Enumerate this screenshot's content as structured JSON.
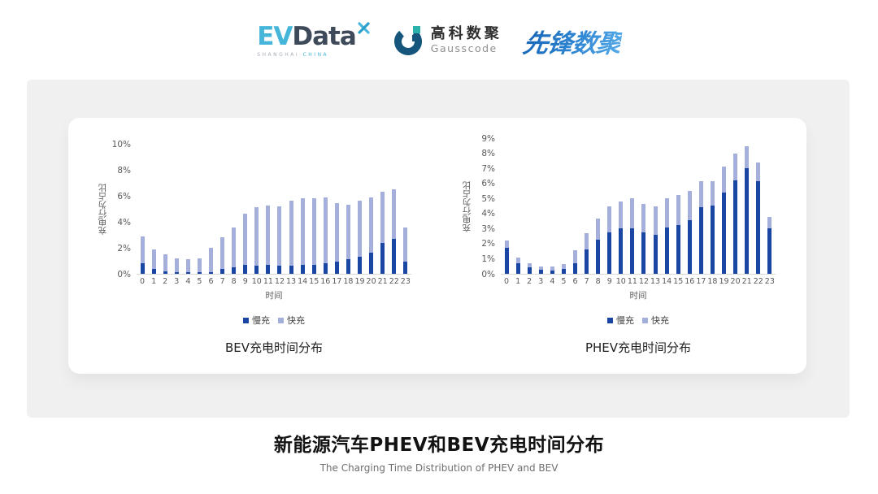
{
  "header": {
    "evdata": {
      "ev": "EV",
      "data": "Data",
      "sub_left": "SHANGHAI",
      "sub_right": "CHINA"
    },
    "gausscode": {
      "cn": "高科数聚",
      "en": "Gausscode"
    },
    "xianfeng": {
      "text": "先锋数聚"
    }
  },
  "footer": {
    "title": "新能源汽车PHEV和BEV充电时间分布",
    "subtitle": "The Charging Time Distribution of PHEV and BEV"
  },
  "colors": {
    "slow": "#1a46a3",
    "fast": "#a5afdc",
    "axis_text": "#595959",
    "panel_bg": "#f0f0f0"
  },
  "chart_data": [
    {
      "type": "bar",
      "stacked": true,
      "title": "BEV充电时间分布",
      "xlabel": "时间",
      "ylabel": "充电行为占比",
      "ylim": [
        0,
        10
      ],
      "y_ticks": [
        "0%",
        "2%",
        "4%",
        "6%",
        "8%",
        "10%"
      ],
      "y_tick_values": [
        0,
        2,
        4,
        6,
        8,
        10
      ],
      "legend": [
        "慢充",
        "快充"
      ],
      "grid": false,
      "legend_position": "bottom",
      "x": [
        0,
        1,
        2,
        3,
        4,
        5,
        6,
        7,
        8,
        9,
        10,
        11,
        12,
        13,
        14,
        15,
        16,
        17,
        18,
        19,
        20,
        21,
        22,
        23
      ],
      "series": [
        {
          "name": "慢充",
          "values": [
            0.8,
            0.35,
            0.2,
            0.1,
            0.1,
            0.1,
            0.15,
            0.35,
            0.5,
            0.7,
            0.65,
            0.7,
            0.6,
            0.65,
            0.7,
            0.7,
            0.8,
            0.95,
            1.1,
            1.3,
            1.6,
            2.35,
            2.7,
            0.95
          ]
        },
        {
          "name": "快充",
          "values": [
            2.1,
            1.55,
            1.3,
            1.1,
            1.0,
            1.1,
            1.85,
            2.45,
            3.05,
            3.9,
            4.5,
            4.55,
            4.6,
            4.95,
            5.1,
            5.1,
            5.05,
            4.5,
            4.2,
            4.3,
            4.3,
            3.95,
            3.8,
            2.6
          ]
        }
      ]
    },
    {
      "type": "bar",
      "stacked": true,
      "title": "PHEV充电时间分布",
      "xlabel": "时间",
      "ylabel": "充电行为占比",
      "ylim": [
        0,
        9
      ],
      "y_ticks": [
        "0%",
        "1%",
        "2%",
        "3%",
        "4%",
        "5%",
        "6%",
        "7%",
        "8%",
        "9%"
      ],
      "y_tick_values": [
        0,
        1,
        2,
        3,
        4,
        5,
        6,
        7,
        8,
        9
      ],
      "legend": [
        "慢充",
        "快充"
      ],
      "grid": false,
      "legend_position": "bottom",
      "x": [
        0,
        1,
        2,
        3,
        4,
        5,
        6,
        7,
        8,
        9,
        10,
        11,
        12,
        13,
        14,
        15,
        16,
        17,
        18,
        19,
        20,
        21,
        22,
        23
      ],
      "series": [
        {
          "name": "慢充",
          "values": [
            1.75,
            0.7,
            0.45,
            0.25,
            0.22,
            0.3,
            0.7,
            1.6,
            2.25,
            2.75,
            3.0,
            3.0,
            2.75,
            2.6,
            3.05,
            3.25,
            3.55,
            4.4,
            4.55,
            5.4,
            6.2,
            7.0,
            6.15,
            3.0
          ]
        },
        {
          "name": "快充",
          "values": [
            0.45,
            0.4,
            0.27,
            0.25,
            0.26,
            0.35,
            0.88,
            1.1,
            1.4,
            1.75,
            1.8,
            2.0,
            1.9,
            1.88,
            1.95,
            2.0,
            1.95,
            1.73,
            1.58,
            1.7,
            1.8,
            1.45,
            1.25,
            0.8
          ]
        }
      ]
    }
  ]
}
